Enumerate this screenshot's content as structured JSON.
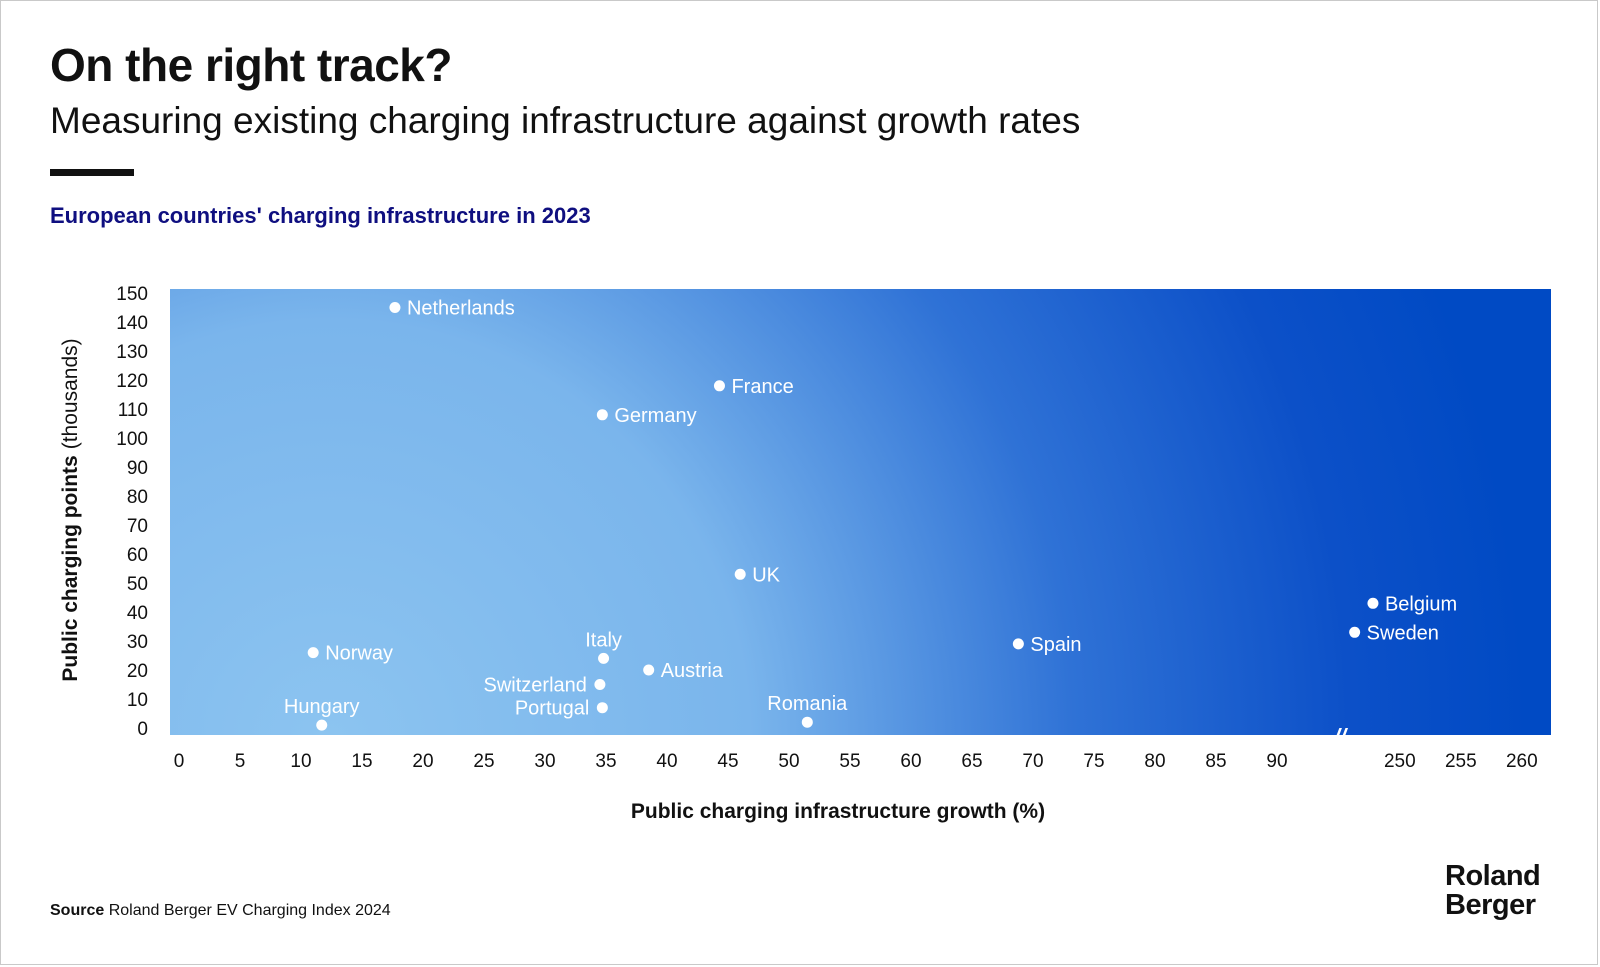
{
  "header": {
    "title": "On the right track?",
    "subtitle": "Measuring existing charging infrastructure against growth rates",
    "chart_heading": "European countries' charging infrastructure in 2023"
  },
  "footer": {
    "source_label": "Source",
    "source_text": "Roland Berger EV Charging Index 2024",
    "logo_line1": "Roland",
    "logo_line2": "Berger"
  },
  "colors": {
    "background_light": "#8cc4f0",
    "background_dark": "#004ac4",
    "heading": "#0f0f80",
    "points": "#ffffff"
  },
  "chart_data": {
    "type": "scatter",
    "title": "European countries' charging infrastructure in 2023",
    "xlabel": "Public charging infrastructure growth (%)",
    "ylabel_bold": "Public charging points",
    "ylabel_rest": "(thousands)",
    "x_ticks_left": [
      0,
      5,
      10,
      15,
      20,
      25,
      30,
      35,
      40,
      45,
      50,
      55,
      60,
      65,
      70,
      75,
      80,
      85,
      90
    ],
    "x_ticks_right": [
      250,
      255,
      260
    ],
    "x_axis_break": "//",
    "y_ticks": [
      0,
      10,
      20,
      30,
      40,
      50,
      60,
      70,
      80,
      90,
      100,
      110,
      120,
      130,
      140,
      150
    ],
    "ylim": [
      0,
      150
    ],
    "grid": false,
    "points": [
      {
        "label": "Netherlands",
        "x": 17.7,
        "y": 145,
        "label_pos": "right"
      },
      {
        "label": "France",
        "x": 44.3,
        "y": 118,
        "label_pos": "right"
      },
      {
        "label": "Germany",
        "x": 34.7,
        "y": 108,
        "label_pos": "right"
      },
      {
        "label": "UK",
        "x": 46.0,
        "y": 53,
        "label_pos": "right"
      },
      {
        "label": "Belgium",
        "x": 247.8,
        "y": 43,
        "label_pos": "right"
      },
      {
        "label": "Sweden",
        "x": 246.3,
        "y": 33,
        "label_pos": "right"
      },
      {
        "label": "Spain",
        "x": 68.8,
        "y": 29,
        "label_pos": "right"
      },
      {
        "label": "Norway",
        "x": 11.0,
        "y": 26,
        "label_pos": "right"
      },
      {
        "label": "Italy",
        "x": 34.8,
        "y": 24,
        "label_pos": "above"
      },
      {
        "label": "Austria",
        "x": 38.5,
        "y": 20,
        "label_pos": "right"
      },
      {
        "label": "Switzerland",
        "x": 34.5,
        "y": 15,
        "label_pos": "left"
      },
      {
        "label": "Portugal",
        "x": 34.7,
        "y": 7,
        "label_pos": "left"
      },
      {
        "label": "Hungary",
        "x": 11.7,
        "y": 1,
        "label_pos": "above"
      },
      {
        "label": "Romania",
        "x": 51.5,
        "y": 2,
        "label_pos": "above"
      }
    ]
  }
}
